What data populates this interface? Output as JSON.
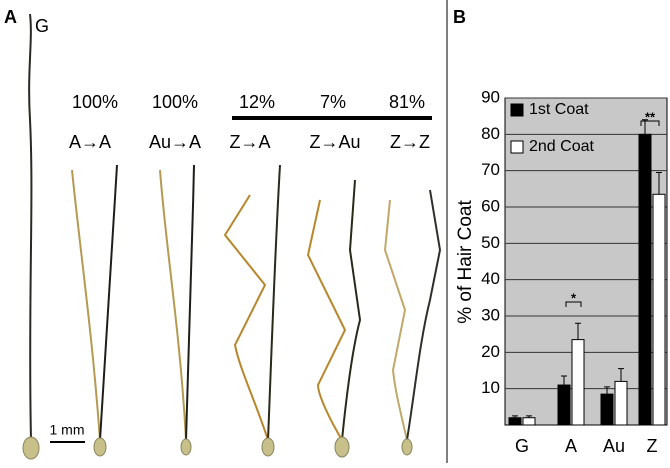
{
  "panel_a": {
    "label": "A",
    "reference": "G",
    "percentages": [
      "100%",
      "100%",
      "12%",
      "7%",
      "81%"
    ],
    "transitions": [
      "A→A",
      "Au→A",
      "Z→A",
      "Z→Au",
      "Z→Z"
    ],
    "scale_bar": "1 mm"
  },
  "chart_data": {
    "type": "bar",
    "panel_label": "B",
    "ylabel": "% of Hair Coat",
    "categories": [
      "G",
      "A",
      "Au",
      "Z"
    ],
    "series": [
      {
        "name": "1st Coat",
        "color": "#000000",
        "values": [
          2,
          11,
          8.5,
          80
        ],
        "errors": [
          0.5,
          2.5,
          2,
          4
        ]
      },
      {
        "name": "2nd Coat",
        "color": "#ffffff",
        "values": [
          2,
          23.5,
          12,
          63.5
        ],
        "errors": [
          0.5,
          4.5,
          3.5,
          6
        ]
      }
    ],
    "annotations": [
      "*",
      "**"
    ],
    "ylim": [
      0,
      90
    ],
    "yticks": [
      10,
      20,
      30,
      40,
      50,
      60,
      70,
      80,
      90
    ],
    "grid": true
  }
}
